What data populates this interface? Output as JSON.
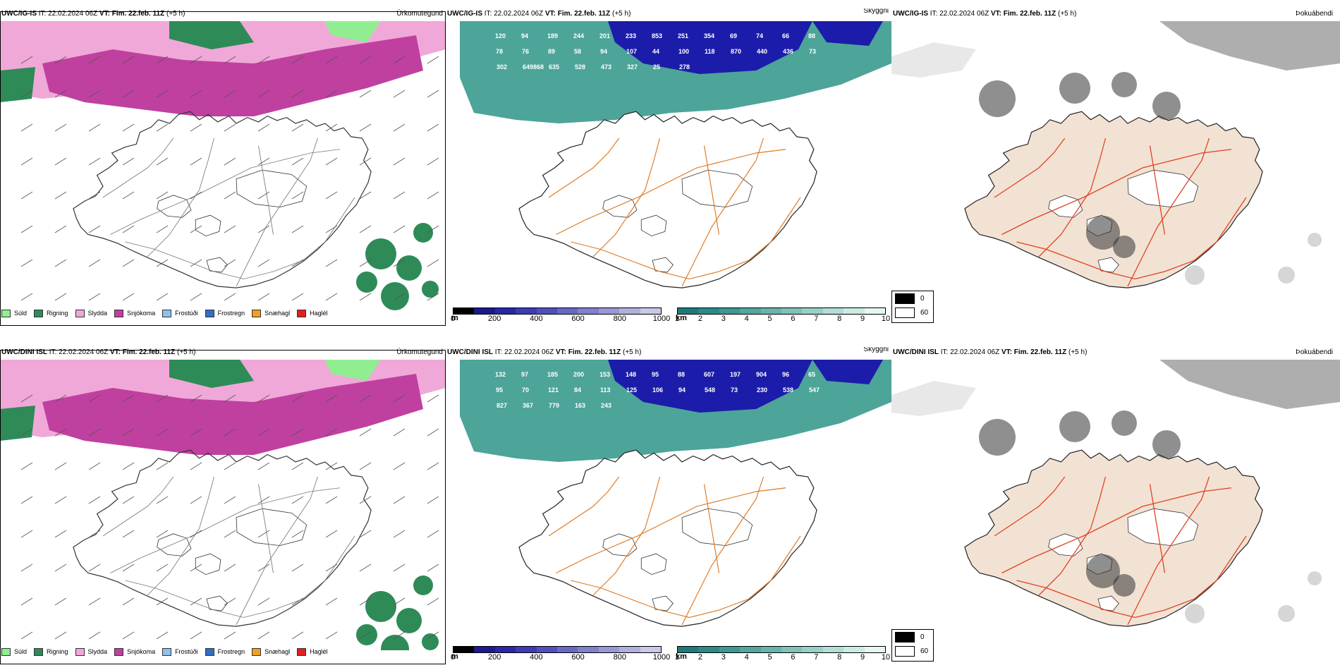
{
  "rows": [
    {
      "model": "UWC/IG-IS",
      "it_label": "IT:",
      "it_value": "22.02.2024 06Z",
      "vt_label": "VT:",
      "vt_value": "Fim. 22.feb. 11Z",
      "lead": "(+5 h)"
    },
    {
      "model": "UWC/DINI ISL",
      "it_label": "IT:",
      "it_value": "22.02.2024 06Z",
      "vt_label": "VT:",
      "vt_value": "Fim. 22.feb. 11Z",
      "lead": "(+5 h)"
    }
  ],
  "panel_types": {
    "precip": "Úrkomutegund",
    "cloud": "Skyggni",
    "fog": "Þokuábendi"
  },
  "precip_legend": [
    {
      "label": "Súld",
      "color": "#90ee90"
    },
    {
      "label": "Rigning",
      "color": "#2e8b57"
    },
    {
      "label": "Slydda",
      "color": "#f0a8d8"
    },
    {
      "label": "Snjókoma",
      "color": "#c040a0"
    },
    {
      "label": "Frostúði",
      "color": "#90c0f0"
    },
    {
      "label": "Frostregn",
      "color": "#3070c0"
    },
    {
      "label": "Snæhagl",
      "color": "#f0a020"
    },
    {
      "label": "Haglél",
      "color": "#e02020"
    }
  ],
  "cloud_base_scale": {
    "unit": "m",
    "ticks": [
      "0",
      "200",
      "400",
      "600",
      "800",
      "1000"
    ],
    "colors": [
      "#000000",
      "#1a1a8c",
      "#2828a8",
      "#3c3cb4",
      "#5050bc",
      "#6868c4",
      "#8080cc",
      "#9898d4",
      "#b0b0dc",
      "#c8c8e8"
    ]
  },
  "visibility_scale": {
    "unit": "km",
    "ticks": [
      "1",
      "2",
      "3",
      "4",
      "5",
      "6",
      "7",
      "8",
      "9",
      "10"
    ],
    "colors": [
      "#1e7a7a",
      "#2c8a86",
      "#3e9892",
      "#52a69e",
      "#68b4aa",
      "#80c2b8",
      "#98d0c6",
      "#b2ded6",
      "#ccebe4",
      "#e6f6f2"
    ]
  },
  "fog_key": [
    {
      "value": "0",
      "color": "#000000"
    },
    {
      "value": "60",
      "color": "#ffffff"
    }
  ],
  "row_labels": [
    {
      "precip_stations": [],
      "cloud_labels": [
        "120",
        "94",
        "189",
        "244",
        "201",
        "233",
        "853",
        "251",
        "354",
        "69",
        "74",
        "66",
        "88",
        "78",
        "76",
        "89",
        "58",
        "94",
        "107",
        "44",
        "100",
        "118",
        "870",
        "440",
        "436",
        "73",
        "302",
        "649868",
        "635",
        "528",
        "473",
        "327",
        "25",
        "278"
      ]
    },
    {
      "cloud_labels": [
        "132",
        "97",
        "185",
        "200",
        "153",
        "148",
        "95",
        "88",
        "607",
        "197",
        "904",
        "96",
        "65",
        "95",
        "70",
        "121",
        "84",
        "113",
        "125",
        "106",
        "94",
        "548",
        "73",
        "230",
        "538",
        "547",
        "827",
        "367",
        "779",
        "163",
        "243"
      ]
    }
  ],
  "colors": {
    "teal": "#3a9a8e",
    "navy": "#1c1caa",
    "pink": "#f0a8d8",
    "magenta": "#c040a0",
    "green": "#2e8b57",
    "lightgreen": "#90ee90",
    "roads": "#e07820",
    "fogland": "#f2e2d4",
    "fogroads": "#e04020"
  }
}
